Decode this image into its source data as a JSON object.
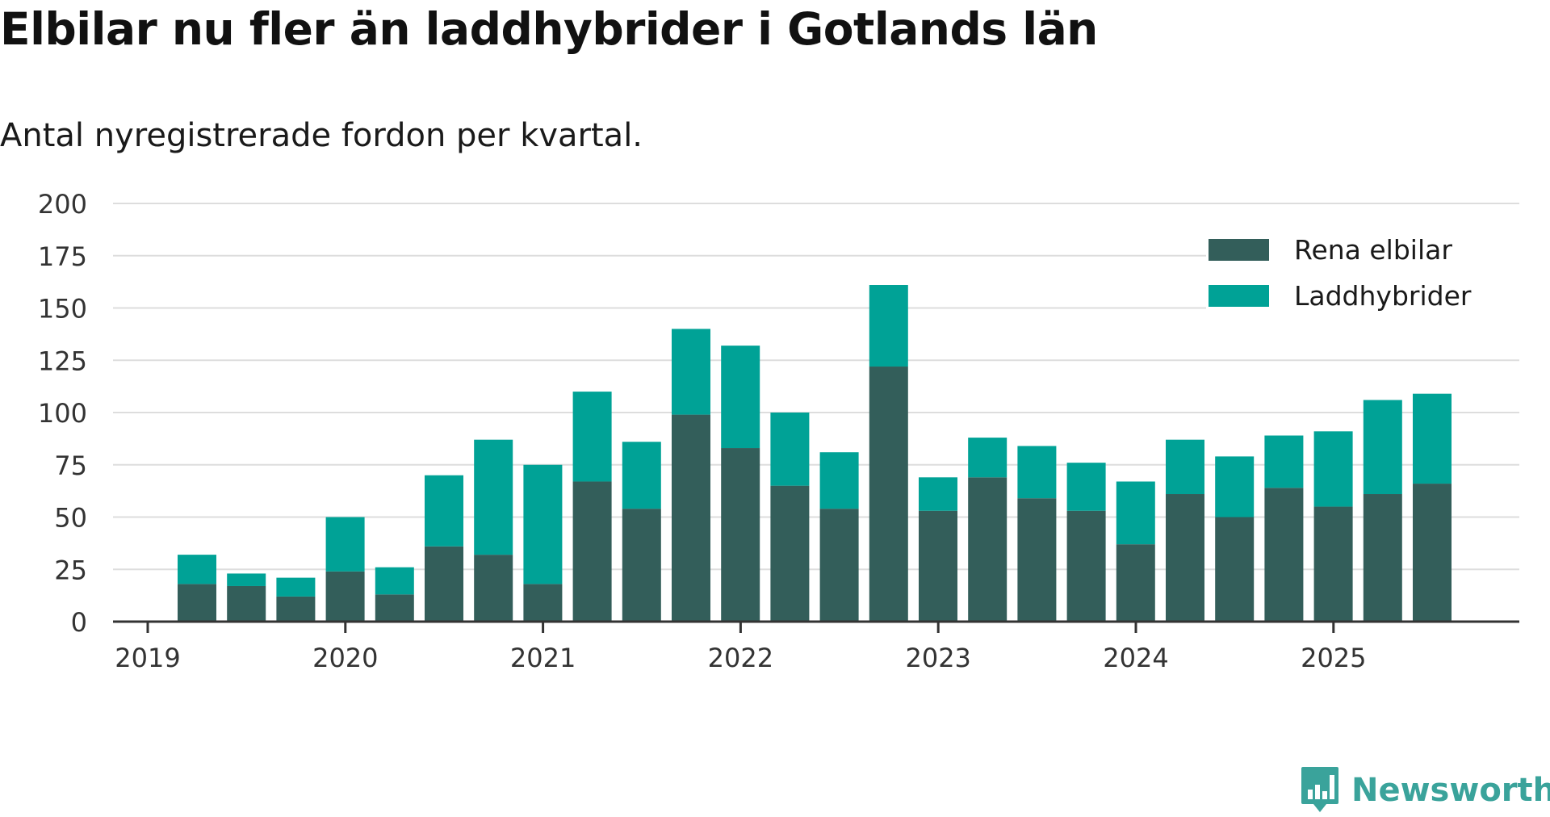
{
  "chart_data": {
    "type": "bar",
    "stacked": true,
    "title": "Elbilar nu fler än laddhybrider i Gotlands län",
    "subtitle": "Antal nyregistrerade fordon per kvartal.",
    "x_tick_labels": [
      "2019",
      "2020",
      "2021",
      "2022",
      "2023",
      "2024",
      "2025"
    ],
    "y_ticks": [
      0,
      25,
      50,
      75,
      100,
      125,
      150,
      175,
      200
    ],
    "ylim": [
      0,
      200
    ],
    "grid": true,
    "legend_position": "top-right",
    "categories": [
      "2019 Q2",
      "2019 Q3",
      "2019 Q4",
      "2020 Q1",
      "2020 Q2",
      "2020 Q3",
      "2020 Q4",
      "2021 Q1",
      "2021 Q2",
      "2021 Q3",
      "2021 Q4",
      "2022 Q1",
      "2022 Q2",
      "2022 Q3",
      "2022 Q4",
      "2023 Q1",
      "2023 Q2",
      "2023 Q3",
      "2023 Q4",
      "2024 Q1",
      "2024 Q2",
      "2024 Q3",
      "2024 Q4",
      "2025 Q1",
      "2025 Q2",
      "2025 Q3"
    ],
    "series": [
      {
        "name": "Rena elbilar",
        "color": "#335e5a",
        "values": [
          18,
          17,
          12,
          24,
          13,
          36,
          32,
          18,
          67,
          54,
          99,
          83,
          65,
          54,
          122,
          53,
          69,
          59,
          53,
          37,
          61,
          50,
          64,
          55,
          61,
          66
        ]
      },
      {
        "name": "Laddhybrider",
        "color": "#00a296",
        "values": [
          14,
          6,
          9,
          26,
          13,
          34,
          55,
          57,
          43,
          32,
          41,
          49,
          35,
          27,
          39,
          16,
          19,
          25,
          23,
          30,
          26,
          29,
          25,
          36,
          45,
          43
        ]
      }
    ]
  },
  "colors": {
    "gridline": "#dddddd",
    "axis": "#333333",
    "brand": "#3aa39b"
  },
  "footer": {
    "brand_name": "Newsworthy",
    "logo_icon": "newsworthy-logo-icon"
  }
}
